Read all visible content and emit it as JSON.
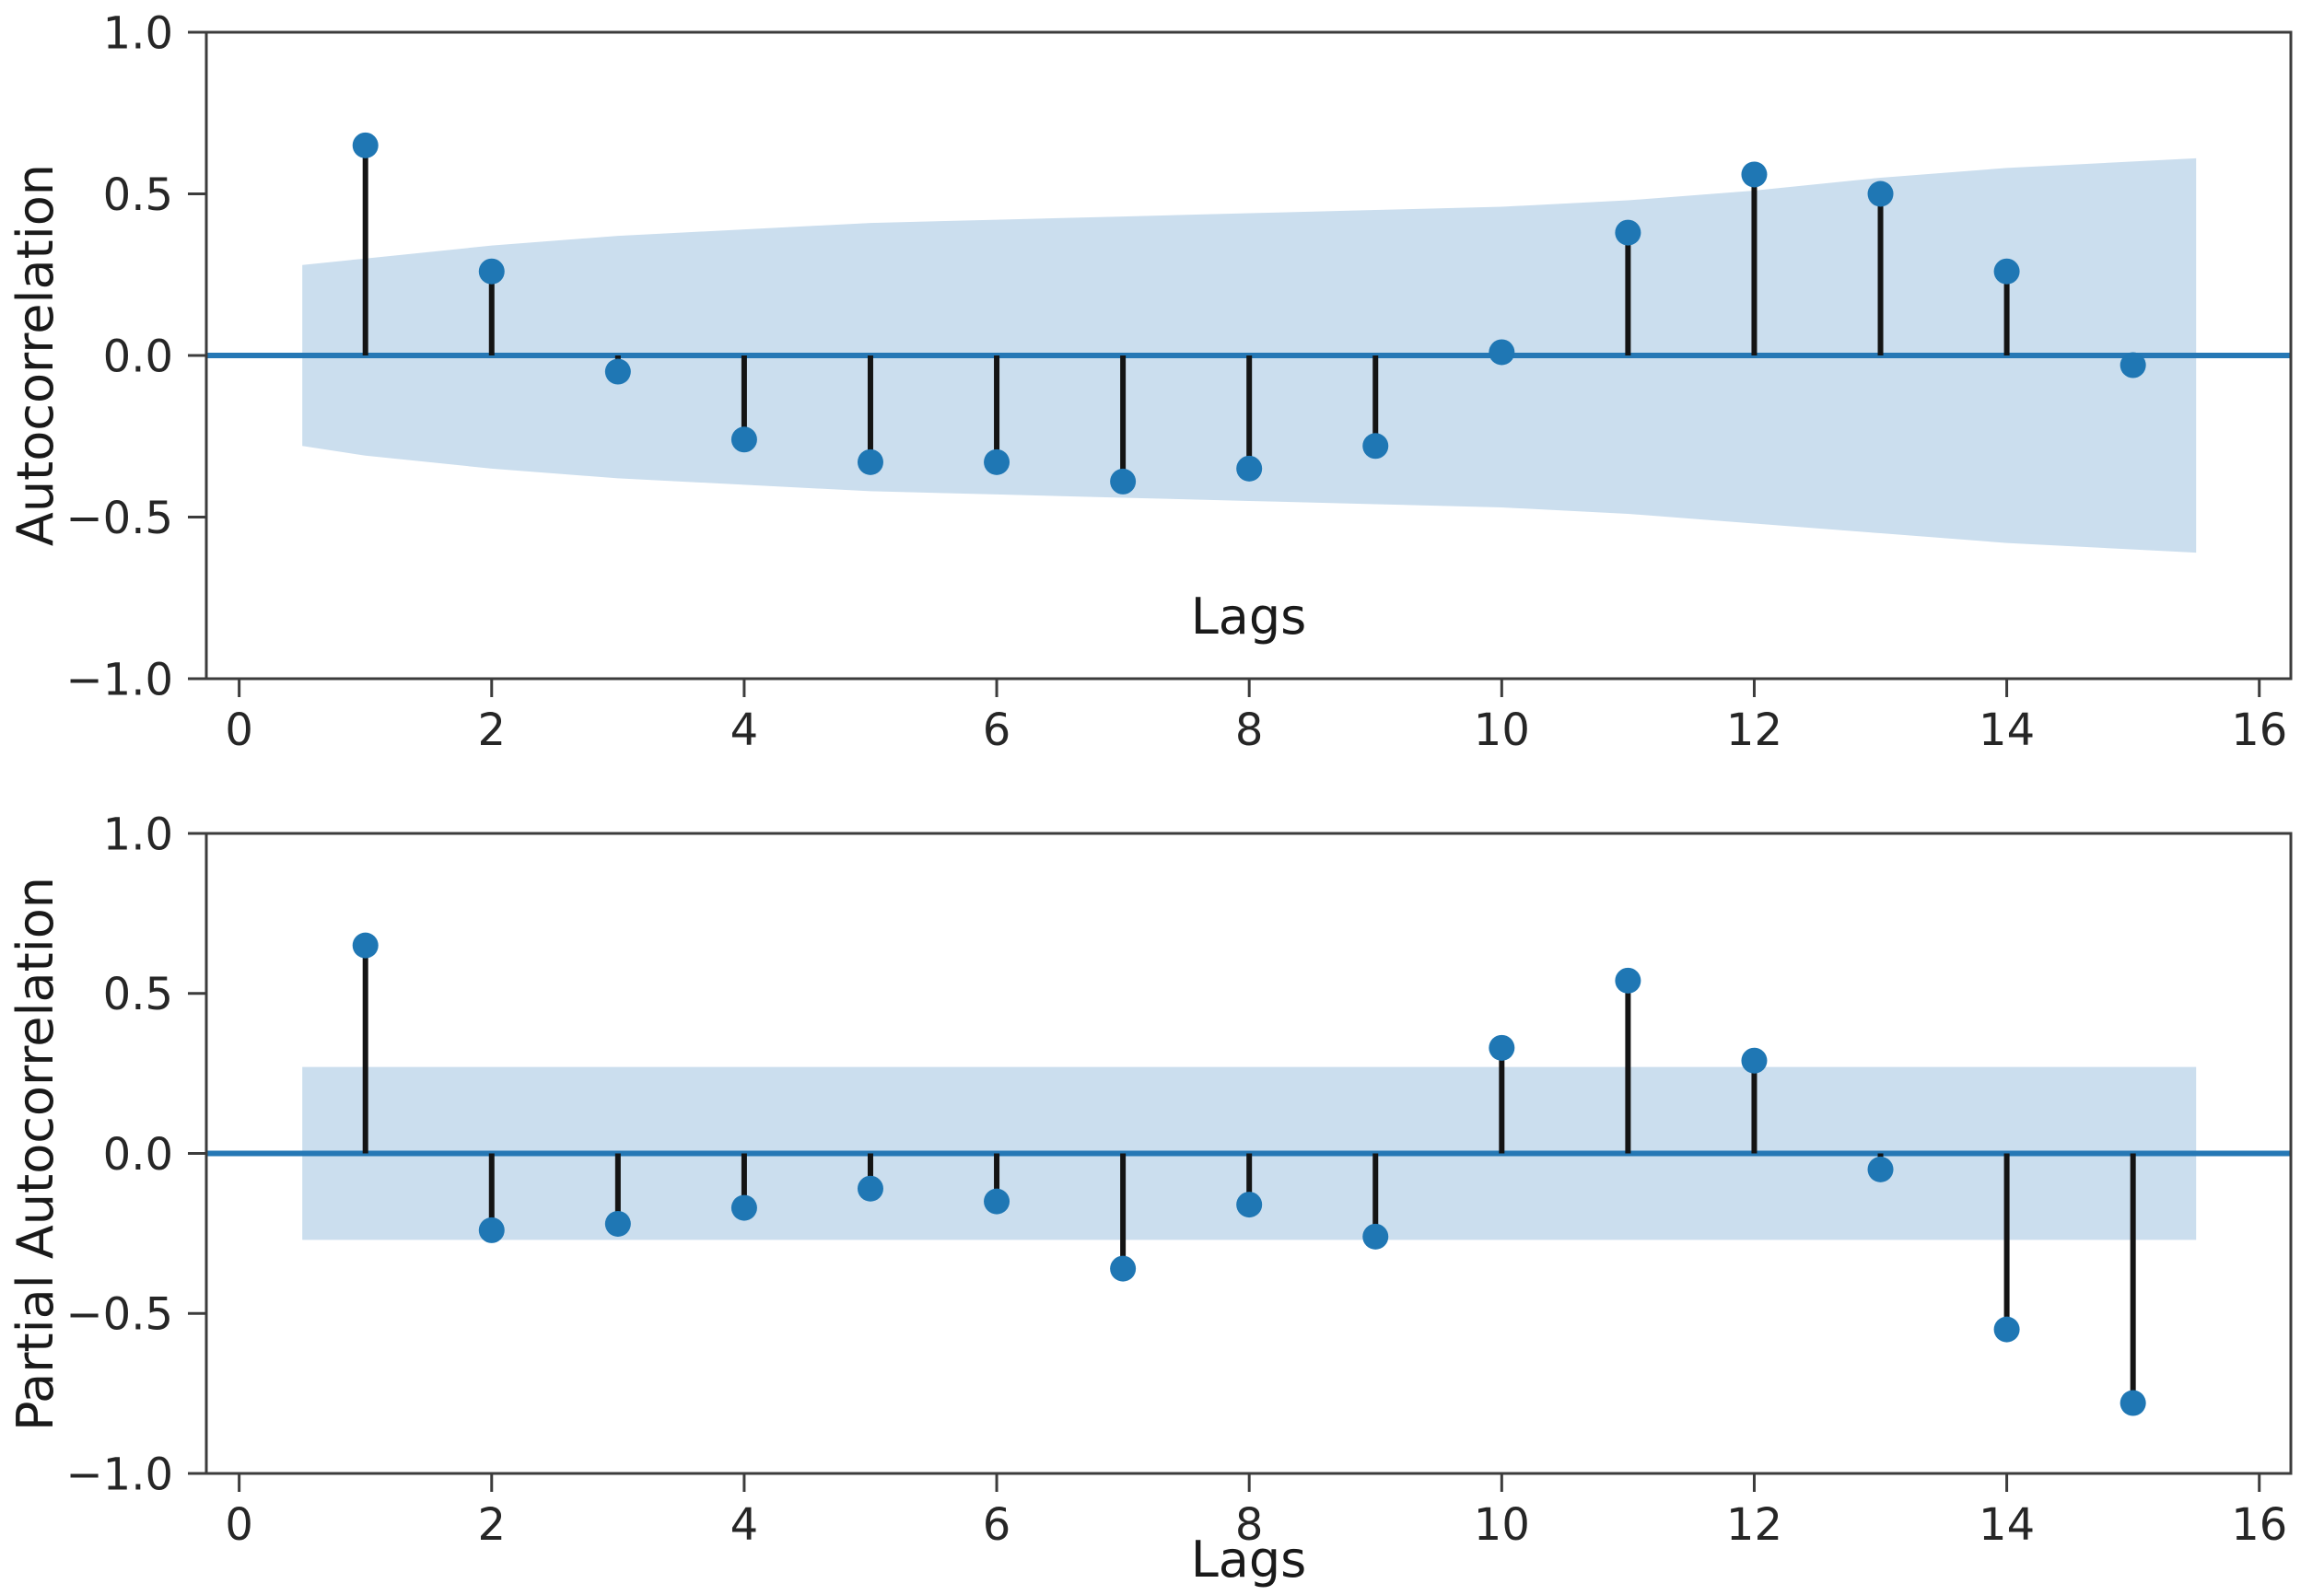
{
  "style": {
    "background": "#ffffff",
    "marker_color": "#1f77b4",
    "zero_line_color": "#2678b5",
    "band_color": "#cbdeee",
    "stem_color": "#141414",
    "spine_color": "#3c3c3c",
    "tick_color": "#3c3c3c",
    "text_color": "#262626"
  },
  "chart_data": [
    {
      "type": "stem",
      "name": "autocorrelation",
      "title": "",
      "xlabel": "Lags",
      "ylabel": "Autocorrelation",
      "xlabel_placement": "inside-plot-bottom-center",
      "xlim": [
        -0.26,
        16.25
      ],
      "ylim": [
        -1.0,
        1.0
      ],
      "grid": false,
      "legend_position": "none",
      "xticks": [
        0,
        2,
        4,
        6,
        8,
        10,
        12,
        14,
        16
      ],
      "xtick_labels": [
        "0",
        "2",
        "4",
        "6",
        "8",
        "10",
        "12",
        "14",
        "16"
      ],
      "yticks": [
        1.0,
        0.5,
        0.0,
        -0.5,
        -1.0
      ],
      "ytick_labels": [
        "1.0",
        "0.5",
        "0.0",
        "−0.5",
        "−1.0"
      ],
      "lags": [
        1,
        2,
        3,
        4,
        5,
        6,
        7,
        8,
        9,
        10,
        11,
        12,
        13,
        14,
        15
      ],
      "values": [
        0.65,
        0.26,
        -0.05,
        -0.26,
        -0.33,
        -0.33,
        -0.39,
        -0.35,
        -0.28,
        0.01,
        0.38,
        0.56,
        0.5,
        0.26,
        -0.03
      ],
      "confidence_band": {
        "x": [
          0.5,
          1,
          2,
          3,
          4,
          5,
          6,
          7,
          8,
          9,
          10,
          11,
          12,
          13,
          14,
          15,
          15.5
        ],
        "upper": [
          0.28,
          0.3,
          0.34,
          0.37,
          0.39,
          0.41,
          0.42,
          0.43,
          0.44,
          0.45,
          0.46,
          0.48,
          0.51,
          0.55,
          0.58,
          0.6,
          0.61
        ],
        "lower": [
          -0.28,
          -0.31,
          -0.35,
          -0.38,
          -0.4,
          -0.42,
          -0.43,
          -0.44,
          -0.45,
          -0.46,
          -0.47,
          -0.49,
          -0.52,
          -0.55,
          -0.58,
          -0.6,
          -0.61
        ]
      }
    },
    {
      "type": "stem",
      "name": "partial-autocorrelation",
      "title": "",
      "xlabel": "Lags",
      "ylabel": "Partial Autocorrelation",
      "xlabel_placement": "below-axis-center",
      "xlim": [
        -0.26,
        16.25
      ],
      "ylim": [
        -1.0,
        1.0
      ],
      "grid": false,
      "legend_position": "none",
      "xticks": [
        0,
        2,
        4,
        6,
        8,
        10,
        12,
        14,
        16
      ],
      "xtick_labels": [
        "0",
        "2",
        "4",
        "6",
        "8",
        "10",
        "12",
        "14",
        "16"
      ],
      "yticks": [
        1.0,
        0.5,
        0.0,
        -0.5,
        -1.0
      ],
      "ytick_labels": [
        "1.0",
        "0.5",
        "0.0",
        "−0.5",
        "−1.0"
      ],
      "lags": [
        1,
        2,
        3,
        4,
        5,
        6,
        7,
        8,
        9,
        10,
        11,
        12,
        13,
        14,
        15
      ],
      "values": [
        0.65,
        -0.24,
        -0.22,
        -0.17,
        -0.11,
        -0.15,
        -0.36,
        -0.16,
        -0.26,
        0.33,
        0.54,
        0.29,
        -0.05,
        -0.55,
        -0.78
      ],
      "confidence_band": {
        "x": [
          0.5,
          15.5
        ],
        "upper": [
          0.27,
          0.27
        ],
        "lower": [
          -0.27,
          -0.27
        ]
      }
    }
  ]
}
